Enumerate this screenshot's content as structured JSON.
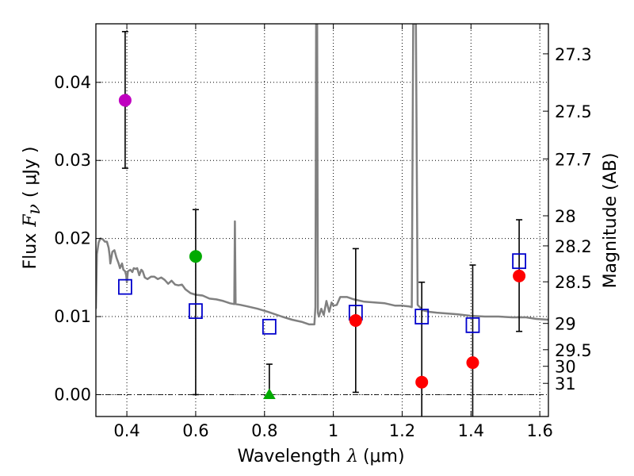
{
  "chart_data": {
    "type": "scatter",
    "xlabel_prefix": "Wavelength",
    "xlabel_symbol": "λ",
    "xlabel_unit": "(μm)",
    "ylabel_prefix": "Flux",
    "ylabel_symbol": "F",
    "ylabel_sub": "ν",
    "ylabel_unit": "( μJy )",
    "y2label": "Magnitude (AB)",
    "xlim": [
      0.31,
      1.625
    ],
    "ylim": [
      -0.0028,
      0.0475
    ],
    "x_ticks": [
      0.4,
      0.6,
      0.8,
      1.0,
      1.2,
      1.4,
      1.6
    ],
    "x_tick_labels": [
      "0.4",
      "0.6",
      "0.8",
      "1",
      "1.2",
      "1.4",
      "1.6"
    ],
    "y_ticks": [
      0.0,
      0.01,
      0.02,
      0.03,
      0.04
    ],
    "y_tick_labels": [
      "0.00",
      "0.01",
      "0.02",
      "0.03",
      "0.04"
    ],
    "magnitude_ticks": [
      "27.3",
      "27.5",
      "27.7",
      "28",
      "28.2",
      "28.5",
      "29",
      "29.5",
      "30",
      "31"
    ],
    "grid": "dotted",
    "colors": {
      "template": "#808080",
      "magenta": "#c000c0",
      "green": "#00aa00",
      "red": "#ff0000",
      "model_box": "#0000cc"
    },
    "observed_points": [
      {
        "x": 0.395,
        "y": 0.0377,
        "err_low": 0.029,
        "err_high": 0.0465,
        "marker": "circle",
        "color": "magenta"
      },
      {
        "x": 0.6,
        "y": 0.0177,
        "err_low": 0.0,
        "err_high": 0.0237,
        "marker": "circle",
        "color": "green"
      },
      {
        "x": 0.814,
        "y": 0.0,
        "err_low": 0.0,
        "err_high": 0.0039,
        "marker": "triangle",
        "color": "green"
      },
      {
        "x": 1.065,
        "y": 0.0095,
        "err_low": 0.0003,
        "err_high": 0.0187,
        "marker": "circle",
        "color": "red"
      },
      {
        "x": 1.257,
        "y": 0.0016,
        "err_low": -0.0028,
        "err_high": 0.0144,
        "marker": "circle",
        "color": "red"
      },
      {
        "x": 1.405,
        "y": 0.0041,
        "err_low": -0.0028,
        "err_high": 0.0166,
        "marker": "circle",
        "color": "red"
      },
      {
        "x": 1.54,
        "y": 0.0152,
        "err_low": 0.0081,
        "err_high": 0.0224,
        "marker": "circle",
        "color": "red"
      }
    ],
    "model_photometry": [
      {
        "x": 0.395,
        "y": 0.0138
      },
      {
        "x": 0.6,
        "y": 0.0107
      },
      {
        "x": 0.814,
        "y": 0.0087
      },
      {
        "x": 1.065,
        "y": 0.0105
      },
      {
        "x": 1.257,
        "y": 0.01
      },
      {
        "x": 1.405,
        "y": 0.0089
      },
      {
        "x": 1.54,
        "y": 0.0171
      }
    ],
    "template_spectrum": [
      [
        0.31,
        0.011
      ],
      [
        0.313,
        0.018
      ],
      [
        0.318,
        0.0195
      ],
      [
        0.323,
        0.02
      ],
      [
        0.33,
        0.0199
      ],
      [
        0.336,
        0.0196
      ],
      [
        0.342,
        0.0196
      ],
      [
        0.347,
        0.0188
      ],
      [
        0.35,
        0.0178
      ],
      [
        0.352,
        0.0168
      ],
      [
        0.358,
        0.0183
      ],
      [
        0.364,
        0.0185
      ],
      [
        0.37,
        0.0175
      ],
      [
        0.376,
        0.0168
      ],
      [
        0.38,
        0.0162
      ],
      [
        0.386,
        0.0168
      ],
      [
        0.39,
        0.016
      ],
      [
        0.395,
        0.0158
      ],
      [
        0.398,
        0.0153
      ],
      [
        0.4,
        0.0144
      ],
      [
        0.403,
        0.0158
      ],
      [
        0.41,
        0.016
      ],
      [
        0.416,
        0.0157
      ],
      [
        0.42,
        0.0162
      ],
      [
        0.426,
        0.0161
      ],
      [
        0.43,
        0.0162
      ],
      [
        0.436,
        0.0153
      ],
      [
        0.442,
        0.016
      ],
      [
        0.446,
        0.0158
      ],
      [
        0.452,
        0.015
      ],
      [
        0.46,
        0.0148
      ],
      [
        0.47,
        0.0151
      ],
      [
        0.48,
        0.0151
      ],
      [
        0.49,
        0.0148
      ],
      [
        0.5,
        0.015
      ],
      [
        0.51,
        0.0147
      ],
      [
        0.52,
        0.0142
      ],
      [
        0.53,
        0.0146
      ],
      [
        0.54,
        0.0141
      ],
      [
        0.55,
        0.014
      ],
      [
        0.56,
        0.0141
      ],
      [
        0.57,
        0.0135
      ],
      [
        0.585,
        0.013
      ],
      [
        0.6,
        0.0128
      ],
      [
        0.62,
        0.0127
      ],
      [
        0.64,
        0.0123
      ],
      [
        0.66,
        0.0122
      ],
      [
        0.68,
        0.012
      ],
      [
        0.7,
        0.0117
      ],
      [
        0.712,
        0.0116
      ],
      [
        0.714,
        0.0222
      ],
      [
        0.716,
        0.0116
      ],
      [
        0.73,
        0.0115
      ],
      [
        0.75,
        0.0113
      ],
      [
        0.78,
        0.011
      ],
      [
        0.81,
        0.0106
      ],
      [
        0.85,
        0.01
      ],
      [
        0.88,
        0.0096
      ],
      [
        0.91,
        0.0093
      ],
      [
        0.93,
        0.009
      ],
      [
        0.945,
        0.009
      ],
      [
        0.948,
        0.0112
      ],
      [
        0.95,
        0.0475
      ],
      [
        0.953,
        0.0475
      ],
      [
        0.955,
        0.0105
      ],
      [
        0.958,
        0.01
      ],
      [
        0.965,
        0.011
      ],
      [
        0.972,
        0.0102
      ],
      [
        0.98,
        0.012
      ],
      [
        0.988,
        0.0106
      ],
      [
        0.995,
        0.0118
      ],
      [
        1.0,
        0.0114
      ],
      [
        1.01,
        0.0115
      ],
      [
        1.02,
        0.0125
      ],
      [
        1.04,
        0.0125
      ],
      [
        1.06,
        0.0122
      ],
      [
        1.09,
        0.0119
      ],
      [
        1.12,
        0.0118
      ],
      [
        1.15,
        0.0117
      ],
      [
        1.18,
        0.0114
      ],
      [
        1.2,
        0.0114
      ],
      [
        1.22,
        0.0113
      ],
      [
        1.228,
        0.0112
      ],
      [
        1.232,
        0.0475
      ],
      [
        1.24,
        0.0475
      ],
      [
        1.245,
        0.0115
      ],
      [
        1.26,
        0.0108
      ],
      [
        1.28,
        0.0106
      ],
      [
        1.3,
        0.0105
      ],
      [
        1.33,
        0.0104
      ],
      [
        1.36,
        0.0103
      ],
      [
        1.4,
        0.0101
      ],
      [
        1.44,
        0.01
      ],
      [
        1.48,
        0.01
      ],
      [
        1.52,
        0.0099
      ],
      [
        1.56,
        0.0099
      ],
      [
        1.59,
        0.0097
      ],
      [
        1.625,
        0.0096
      ]
    ]
  }
}
